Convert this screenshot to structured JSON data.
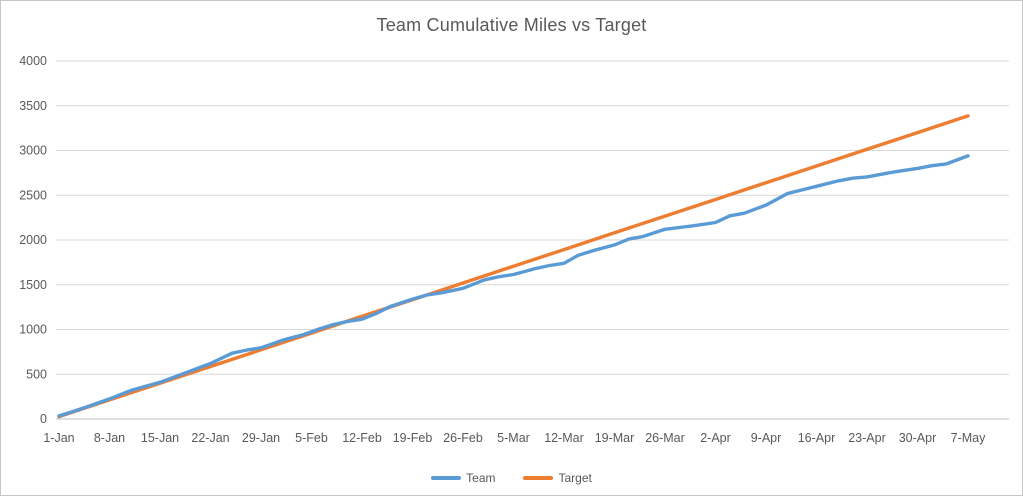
{
  "chart": {
    "title": "Team Cumulative Miles vs Target"
  },
  "colors": {
    "team_line": "#5B9BD5",
    "target_line": "#ED7D31",
    "gridline": "#D9D9D9",
    "axis_line": "#BFBFBF",
    "text": "#595959",
    "background": "#FFFFFF",
    "frame_border": "#C8C6C4"
  },
  "legend": {
    "position": "bottom",
    "items": [
      {
        "label": "Team",
        "color": "#5B9BD5"
      },
      {
        "label": "Target",
        "color": "#ED7D31"
      }
    ]
  },
  "chart_data": {
    "type": "line",
    "title": "Team Cumulative Miles vs Target",
    "xlabel": "",
    "ylabel": "",
    "ylim": [
      0,
      4000
    ],
    "y_tick_step": 500,
    "y_tick_labels": [
      "0",
      "500",
      "1000",
      "1500",
      "2000",
      "2500",
      "3000",
      "3500",
      "4000"
    ],
    "grid": true,
    "legend_position": "bottom",
    "categories": [
      "1-Jan",
      "8-Jan",
      "15-Jan",
      "22-Jan",
      "29-Jan",
      "5-Feb",
      "12-Feb",
      "19-Feb",
      "26-Feb",
      "5-Mar",
      "12-Mar",
      "19-Mar",
      "26-Mar",
      "2-Apr",
      "9-Apr",
      "16-Apr",
      "23-Apr",
      "30-Apr",
      "7-May"
    ],
    "series": [
      {
        "name": "Team",
        "color": "#5B9BD5",
        "values": [
          35,
          225,
          410,
          620,
          795,
          945,
          1115,
          1340,
          1460,
          1615,
          1740,
          1945,
          2120,
          2195,
          2390,
          2600,
          2705,
          2800,
          2940
        ]
      },
      {
        "name": "Target",
        "color": "#ED7D31",
        "values": [
          27,
          213,
          400,
          587,
          773,
          960,
          1147,
          1333,
          1520,
          1707,
          1893,
          2080,
          2267,
          2453,
          2640,
          2827,
          3013,
          3200,
          3387
        ]
      }
    ],
    "team_daily_estimate_day_miles": [
      [
        0,
        35
      ],
      [
        2,
        85
      ],
      [
        4,
        140
      ],
      [
        7,
        225
      ],
      [
        10,
        320
      ],
      [
        14,
        410
      ],
      [
        17,
        500
      ],
      [
        21,
        620
      ],
      [
        24,
        735
      ],
      [
        26,
        770
      ],
      [
        28,
        795
      ],
      [
        31,
        880
      ],
      [
        34,
        945
      ],
      [
        36,
        1005
      ],
      [
        38,
        1055
      ],
      [
        40,
        1090
      ],
      [
        42,
        1115
      ],
      [
        44,
        1180
      ],
      [
        46,
        1260
      ],
      [
        49,
        1340
      ],
      [
        51,
        1385
      ],
      [
        53,
        1410
      ],
      [
        56,
        1460
      ],
      [
        59,
        1555
      ],
      [
        61,
        1590
      ],
      [
        63,
        1615
      ],
      [
        66,
        1680
      ],
      [
        68,
        1715
      ],
      [
        70,
        1740
      ],
      [
        72,
        1830
      ],
      [
        74,
        1880
      ],
      [
        77,
        1945
      ],
      [
        79,
        2010
      ],
      [
        81,
        2040
      ],
      [
        84,
        2120
      ],
      [
        86,
        2140
      ],
      [
        88,
        2160
      ],
      [
        91,
        2195
      ],
      [
        93,
        2270
      ],
      [
        95,
        2300
      ],
      [
        98,
        2390
      ],
      [
        101,
        2520
      ],
      [
        103,
        2560
      ],
      [
        105,
        2600
      ],
      [
        108,
        2660
      ],
      [
        110,
        2690
      ],
      [
        112,
        2705
      ],
      [
        115,
        2750
      ],
      [
        117,
        2775
      ],
      [
        119,
        2800
      ],
      [
        121,
        2830
      ],
      [
        123,
        2850
      ],
      [
        126,
        2940
      ]
    ]
  }
}
